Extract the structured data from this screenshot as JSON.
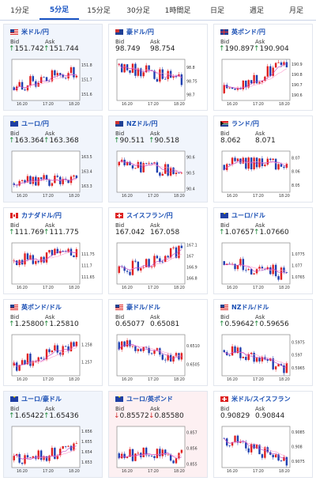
{
  "tabs": [
    {
      "label": "1分足",
      "active": false
    },
    {
      "label": "5分足",
      "active": true
    },
    {
      "label": "15分足",
      "active": false
    },
    {
      "label": "30分足",
      "active": false
    },
    {
      "label": "1時間足",
      "active": false
    },
    {
      "label": "日足",
      "active": false
    },
    {
      "label": "週足",
      "active": false
    },
    {
      "label": "月足",
      "active": false
    }
  ],
  "bid_label": "Bid",
  "ask_label": "Ask",
  "colors": {
    "up": "#1f8a3a",
    "down": "#d23232",
    "bull_candle": "#e02020",
    "bear_candle": "#1f3fb0",
    "ma1": "#c040c0",
    "ma2": "#ff9ccf",
    "accent": "#1a55c4"
  },
  "cards": [
    {
      "name": "米ドル/円",
      "flag": "us",
      "bg": "hl",
      "bid": "151.742",
      "ask": "151.744",
      "bid_arrow": "up",
      "ask_arrow": "up",
      "chart": {
        "x_ticks": [
          "16:20",
          "17:20",
          "18:20"
        ],
        "y_ticks": [
          "151.8",
          "151.7",
          "151.6"
        ],
        "y_range": [
          151.56,
          151.84
        ],
        "start": 151.65,
        "end": 151.76
      }
    },
    {
      "name": "豪ドル/円",
      "flag": "au",
      "bg": "plain",
      "bid": "98.749",
      "ask": "98.754",
      "bid_arrow": "none",
      "ask_arrow": "none",
      "chart": {
        "x_ticks": [
          "16:20",
          "17:20",
          "18:20"
        ],
        "y_ticks": [
          "98.8",
          "98.75",
          "98.7"
        ],
        "y_range": [
          98.68,
          98.83
        ],
        "start": 98.81,
        "end": 98.75
      }
    },
    {
      "name": "英ポンド/円",
      "flag": "gb",
      "bg": "plain",
      "bid": "190.897",
      "ask": "190.904",
      "bid_arrow": "up",
      "ask_arrow": "up",
      "chart": {
        "x_ticks": [
          "16:20",
          "17:20",
          "18:20"
        ],
        "y_ticks": [
          "190.9",
          "190.8",
          "190.7",
          "190.6"
        ],
        "y_range": [
          190.55,
          190.95
        ],
        "start": 190.62,
        "end": 190.9
      }
    },
    {
      "name": "ユーロ/円",
      "flag": "eu",
      "bg": "hl",
      "bid": "163.364",
      "ask": "163.368",
      "bid_arrow": "up",
      "ask_arrow": "up",
      "chart": {
        "x_ticks": [
          "16:20",
          "17:20",
          "18:20"
        ],
        "y_ticks": [
          "163.5",
          "163.4",
          "163.3"
        ],
        "y_range": [
          163.26,
          163.54
        ],
        "start": 163.32,
        "end": 163.37
      }
    },
    {
      "name": "NZドル/円",
      "flag": "nz",
      "bg": "hl",
      "bid": "90.511",
      "ask": "90.518",
      "bid_arrow": "up",
      "ask_arrow": "up",
      "chart": {
        "x_ticks": [
          "16:20",
          "17:20",
          "18:20"
        ],
        "y_ticks": [
          "90.6",
          "90.5",
          "90.4"
        ],
        "y_range": [
          90.38,
          90.64
        ],
        "start": 90.55,
        "end": 90.51
      }
    },
    {
      "name": "ランド/円",
      "flag": "za",
      "bg": "plain",
      "bid": "8.062",
      "ask": "8.071",
      "bid_arrow": "none",
      "ask_arrow": "none",
      "chart": {
        "x_ticks": [
          "16:20",
          "17:20",
          "18:20"
        ],
        "y_ticks": [
          "8.07",
          "8.06",
          "8.05"
        ],
        "y_range": [
          8.045,
          8.075
        ],
        "start": 8.065,
        "end": 8.066
      }
    },
    {
      "name": "カナダドル/円",
      "flag": "ca",
      "bg": "plain",
      "bid": "111.769",
      "ask": "111.775",
      "bid_arrow": "up",
      "ask_arrow": "up",
      "chart": {
        "x_ticks": [
          "16:20",
          "17:20",
          "18:20"
        ],
        "y_ticks": [
          "111.75",
          "111.7",
          "111.65"
        ],
        "y_range": [
          111.62,
          111.8
        ],
        "start": 111.72,
        "end": 111.77
      }
    },
    {
      "name": "スイスフラン/円",
      "flag": "ch",
      "bg": "plain",
      "bid": "167.042",
      "ask": "167.058",
      "bid_arrow": "none",
      "ask_arrow": "none",
      "chart": {
        "x_ticks": [
          "16:20",
          "17:20",
          "18:20"
        ],
        "y_ticks": [
          "167.1",
          "167",
          "166.9",
          "166.8"
        ],
        "y_range": [
          166.75,
          167.12
        ],
        "start": 166.85,
        "end": 167.06
      }
    },
    {
      "name": "ユーロ/ドル",
      "flag": "eu",
      "bg": "plain",
      "bid": "1.07657",
      "ask": "1.07660",
      "bid_arrow": "up",
      "ask_arrow": "up",
      "chart": {
        "x_ticks": [
          "16:20",
          "17:20",
          "18:20"
        ],
        "y_ticks": [
          "1.0775",
          "1.077",
          "1.0765"
        ],
        "y_range": [
          1.0762,
          1.078
        ],
        "start": 1.0772,
        "end": 1.0766
      }
    },
    {
      "name": "英ポンド/ドル",
      "flag": "us",
      "bg": "plain",
      "bid": "1.25800",
      "ask": "1.25810",
      "bid_arrow": "up",
      "ask_arrow": "up",
      "chart": {
        "x_ticks": [
          "16:20",
          "17:20",
          "18:20"
        ],
        "y_ticks": [
          "1.258",
          "1.257"
        ],
        "y_range": [
          1.2562,
          1.2586
        ],
        "start": 1.2568,
        "end": 1.258
      }
    },
    {
      "name": "豪ドル/ドル",
      "flag": "us",
      "bg": "plain",
      "bid": "0.65077",
      "ask": "0.65081",
      "bid_arrow": "none",
      "ask_arrow": "none",
      "chart": {
        "x_ticks": [
          "16:20",
          "17:20",
          "18:20"
        ],
        "y_ticks": [
          "0.6510",
          "0.6505"
        ],
        "y_range": [
          0.6502,
          0.6513
        ],
        "start": 0.6511,
        "end": 0.6507
      }
    },
    {
      "name": "NZドル/ドル",
      "flag": "us",
      "bg": "plain",
      "bid": "0.59642",
      "ask": "0.59656",
      "bid_arrow": "up",
      "ask_arrow": "up",
      "chart": {
        "x_ticks": [
          "16:20",
          "17:20",
          "18:20"
        ],
        "y_ticks": [
          "0.5975",
          "0.597",
          "0.5965"
        ],
        "y_range": [
          0.5962,
          0.5978
        ],
        "start": 0.5972,
        "end": 0.5965
      }
    },
    {
      "name": "ユーロ/豪ドル",
      "flag": "eu",
      "bg": "hl",
      "bid": "1.65422",
      "ask": "1.65436",
      "bid_arrow": "up",
      "ask_arrow": "up",
      "chart": {
        "x_ticks": [
          "16:20",
          "17:20",
          "18:20"
        ],
        "y_ticks": [
          "1.656",
          "1.655",
          "1.654",
          "1.653"
        ],
        "y_range": [
          1.6525,
          1.6565
        ],
        "start": 1.6532,
        "end": 1.6543
      }
    },
    {
      "name": "ユーロ/英ポンド",
      "flag": "eu",
      "bg": "pink",
      "bid": "0.85572",
      "ask": "0.85580",
      "bid_arrow": "down",
      "ask_arrow": "down",
      "chart": {
        "x_ticks": [
          "16:20",
          "17:20",
          "18:20"
        ],
        "y_ticks": [
          "0.857",
          "0.856",
          "0.855"
        ],
        "y_range": [
          0.8548,
          0.8574
        ],
        "start": 0.8557,
        "end": 0.8555
      }
    },
    {
      "name": "米ドル/スイスフラン",
      "flag": "ch",
      "bg": "plain",
      "bid": "0.90829",
      "ask": "0.90844",
      "bid_arrow": "none",
      "ask_arrow": "none",
      "chart": {
        "x_ticks": [
          "16:20",
          "17:20",
          "18:20"
        ],
        "y_ticks": [
          "0.9085",
          "0.908",
          "0.9075"
        ],
        "y_range": [
          0.9073,
          0.9087
        ],
        "start": 0.9083,
        "end": 0.9076
      }
    }
  ]
}
